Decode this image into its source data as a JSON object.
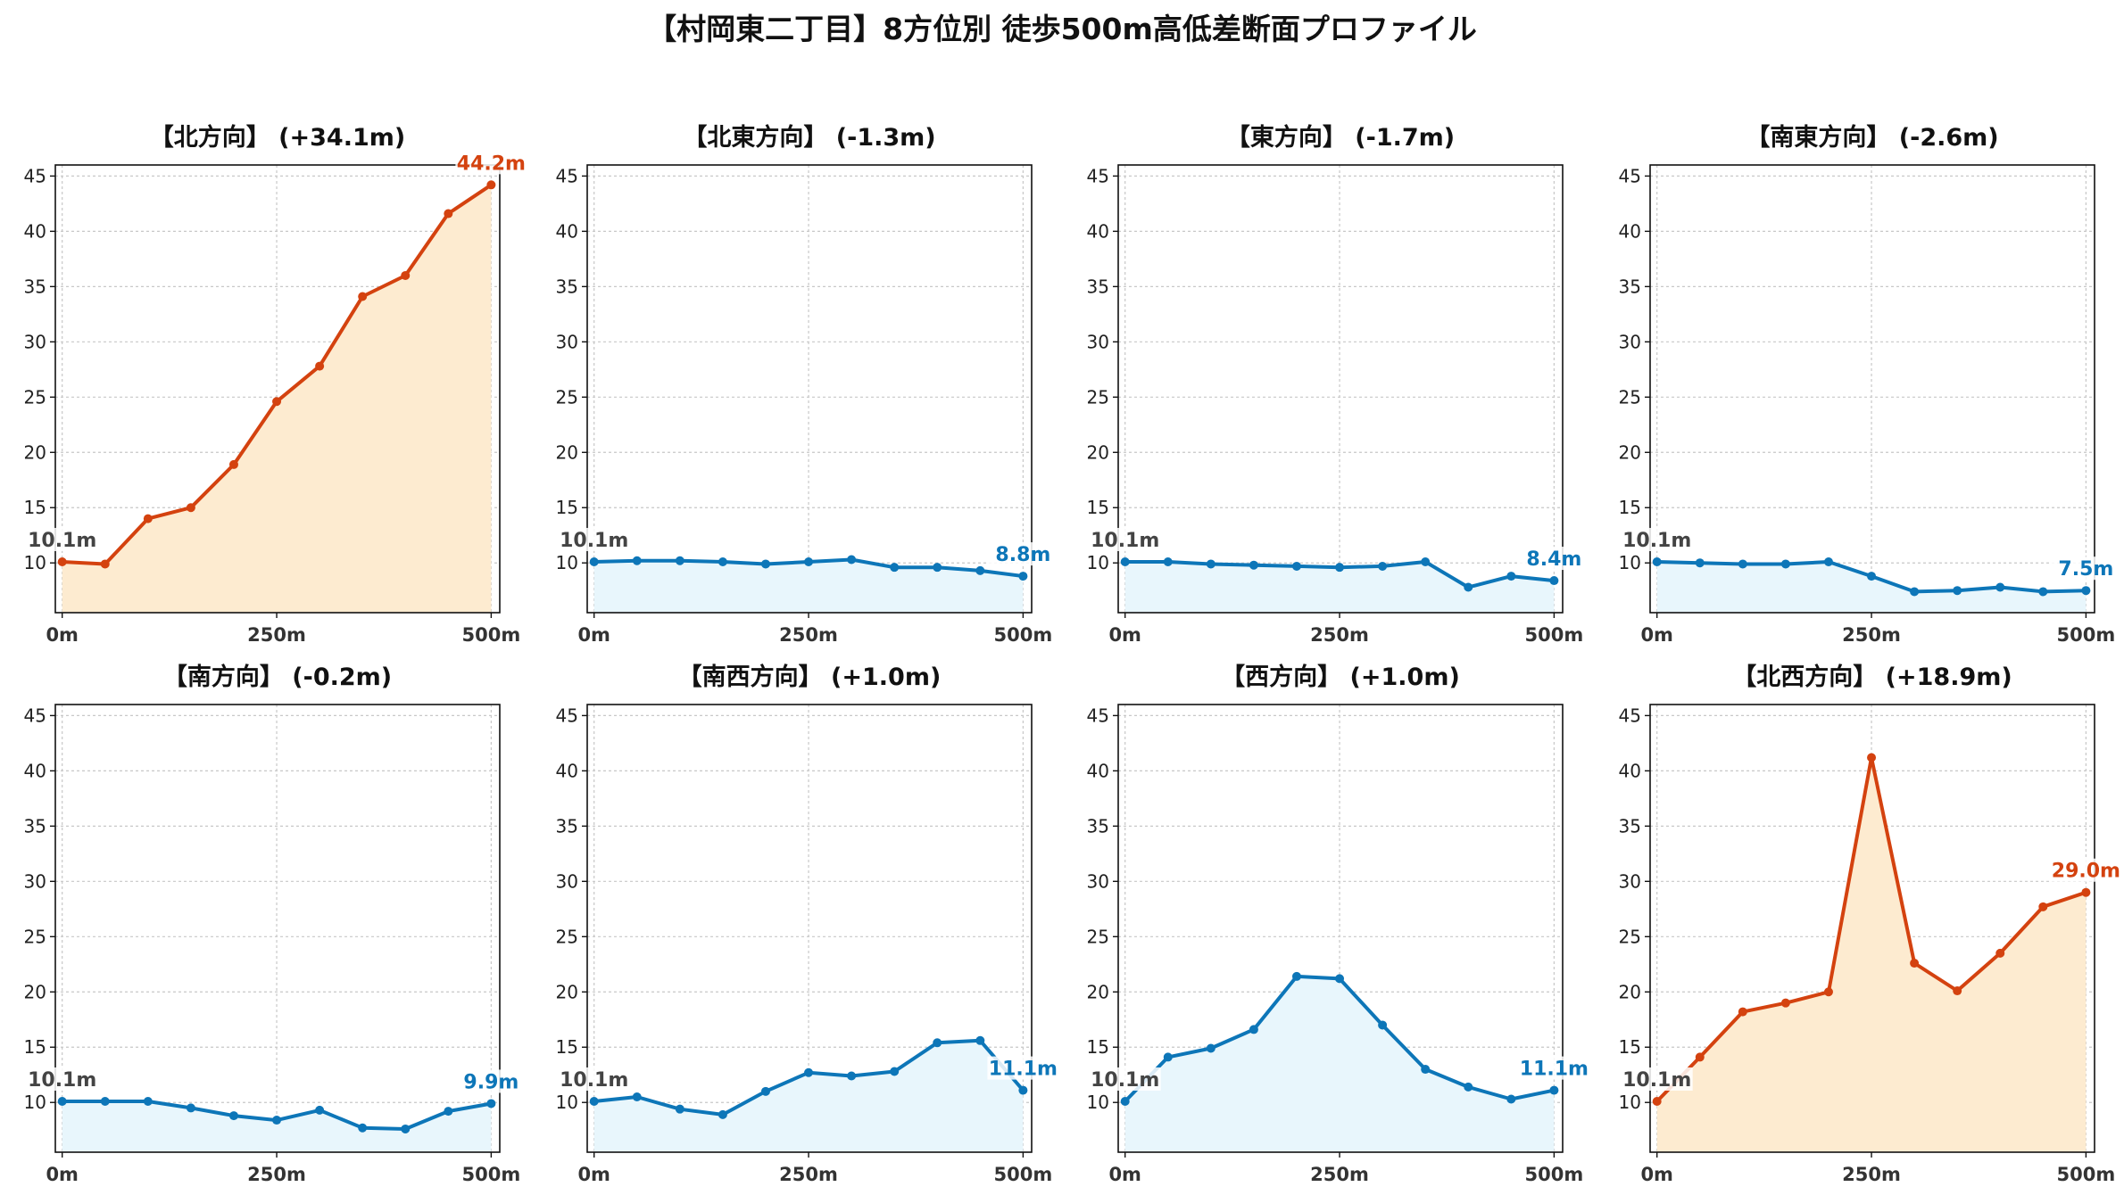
{
  "figure_title": "【村岡東二丁目】8方位別 徒歩500m高低差断面プロファイル",
  "colors": {
    "up_line": "#d4420f",
    "up_fill": "#fdebd0",
    "down_line": "#0d76b8",
    "down_fill": "#e8f6fc",
    "start_label": "#444444",
    "grid": "#c8c8c8"
  },
  "chart_data": [
    {
      "type": "area",
      "title": "【北方向】 (+34.1m)",
      "trend": "up",
      "x": [
        0,
        50,
        100,
        150,
        200,
        250,
        300,
        350,
        400,
        450,
        500
      ],
      "values": [
        10.1,
        9.9,
        14.0,
        15.0,
        18.9,
        24.6,
        27.8,
        34.1,
        36.0,
        41.6,
        44.2
      ],
      "start_label": "10.1m",
      "end_label": "44.2m",
      "xticks": [
        "0m",
        "250m",
        "500m"
      ],
      "yticks": [
        10,
        15,
        20,
        25,
        30,
        35,
        40,
        45
      ],
      "ylim": [
        5.5,
        46
      ],
      "xlim": [
        -8,
        510
      ],
      "grid": true
    },
    {
      "type": "area",
      "title": "【北東方向】 (-1.3m)",
      "trend": "down",
      "x": [
        0,
        50,
        100,
        150,
        200,
        250,
        300,
        350,
        400,
        450,
        500
      ],
      "values": [
        10.1,
        10.2,
        10.2,
        10.1,
        9.9,
        10.1,
        10.3,
        9.6,
        9.6,
        9.3,
        8.8
      ],
      "start_label": "10.1m",
      "end_label": "8.8m",
      "xticks": [
        "0m",
        "250m",
        "500m"
      ],
      "yticks": [
        10,
        15,
        20,
        25,
        30,
        35,
        40,
        45
      ],
      "ylim": [
        5.5,
        46
      ],
      "xlim": [
        -8,
        510
      ],
      "grid": true
    },
    {
      "type": "area",
      "title": "【東方向】 (-1.7m)",
      "trend": "down",
      "x": [
        0,
        50,
        100,
        150,
        200,
        250,
        300,
        350,
        400,
        450,
        500
      ],
      "values": [
        10.1,
        10.1,
        9.9,
        9.8,
        9.7,
        9.6,
        9.7,
        10.1,
        7.8,
        8.8,
        8.4
      ],
      "start_label": "10.1m",
      "end_label": "8.4m",
      "xticks": [
        "0m",
        "250m",
        "500m"
      ],
      "yticks": [
        10,
        15,
        20,
        25,
        30,
        35,
        40,
        45
      ],
      "ylim": [
        5.5,
        46
      ],
      "xlim": [
        -8,
        510
      ],
      "grid": true
    },
    {
      "type": "area",
      "title": "【南東方向】 (-2.6m)",
      "trend": "down",
      "x": [
        0,
        50,
        100,
        150,
        200,
        250,
        300,
        350,
        400,
        450,
        500
      ],
      "values": [
        10.1,
        10.0,
        9.9,
        9.9,
        10.1,
        8.8,
        7.4,
        7.5,
        7.8,
        7.4,
        7.5
      ],
      "start_label": "10.1m",
      "end_label": "7.5m",
      "xticks": [
        "0m",
        "250m",
        "500m"
      ],
      "yticks": [
        10,
        15,
        20,
        25,
        30,
        35,
        40,
        45
      ],
      "ylim": [
        5.5,
        46
      ],
      "xlim": [
        -8,
        510
      ],
      "grid": true
    },
    {
      "type": "area",
      "title": "【南方向】 (-0.2m)",
      "trend": "down",
      "x": [
        0,
        50,
        100,
        150,
        200,
        250,
        300,
        350,
        400,
        450,
        500
      ],
      "values": [
        10.1,
        10.1,
        10.1,
        9.5,
        8.8,
        8.4,
        9.3,
        7.7,
        7.6,
        9.2,
        9.9
      ],
      "start_label": "10.1m",
      "end_label": "9.9m",
      "xticks": [
        "0m",
        "250m",
        "500m"
      ],
      "yticks": [
        10,
        15,
        20,
        25,
        30,
        35,
        40,
        45
      ],
      "ylim": [
        5.5,
        46
      ],
      "xlim": [
        -8,
        510
      ],
      "grid": true
    },
    {
      "type": "area",
      "title": "【南西方向】 (+1.0m)",
      "trend": "down",
      "x": [
        0,
        50,
        100,
        150,
        200,
        250,
        300,
        350,
        400,
        450,
        500
      ],
      "values": [
        10.1,
        10.5,
        9.4,
        8.9,
        11.0,
        12.7,
        12.4,
        12.8,
        15.4,
        15.6,
        11.1
      ],
      "start_label": "10.1m",
      "end_label": "11.1m",
      "xticks": [
        "0m",
        "250m",
        "500m"
      ],
      "yticks": [
        10,
        15,
        20,
        25,
        30,
        35,
        40,
        45
      ],
      "ylim": [
        5.5,
        46
      ],
      "xlim": [
        -8,
        510
      ],
      "grid": true
    },
    {
      "type": "area",
      "title": "【西方向】 (+1.0m)",
      "trend": "down",
      "x": [
        0,
        50,
        100,
        150,
        200,
        250,
        300,
        350,
        400,
        450,
        500
      ],
      "values": [
        10.1,
        14.1,
        14.9,
        16.6,
        21.4,
        21.2,
        17.0,
        13.0,
        11.4,
        10.3,
        11.1
      ],
      "start_label": "10.1m",
      "end_label": "11.1m",
      "xticks": [
        "0m",
        "250m",
        "500m"
      ],
      "yticks": [
        10,
        15,
        20,
        25,
        30,
        35,
        40,
        45
      ],
      "ylim": [
        5.5,
        46
      ],
      "xlim": [
        -8,
        510
      ],
      "grid": true
    },
    {
      "type": "area",
      "title": "【北西方向】 (+18.9m)",
      "trend": "up",
      "x": [
        0,
        50,
        100,
        150,
        200,
        250,
        300,
        350,
        400,
        450,
        500
      ],
      "values": [
        10.1,
        14.1,
        18.2,
        19.0,
        20.0,
        41.2,
        22.6,
        20.1,
        23.5,
        27.7,
        29.0
      ],
      "start_label": "10.1m",
      "end_label": "29.0m",
      "xticks": [
        "0m",
        "250m",
        "500m"
      ],
      "yticks": [
        10,
        15,
        20,
        25,
        30,
        35,
        40,
        45
      ],
      "ylim": [
        5.5,
        46
      ],
      "xlim": [
        -8,
        510
      ],
      "grid": true
    }
  ]
}
